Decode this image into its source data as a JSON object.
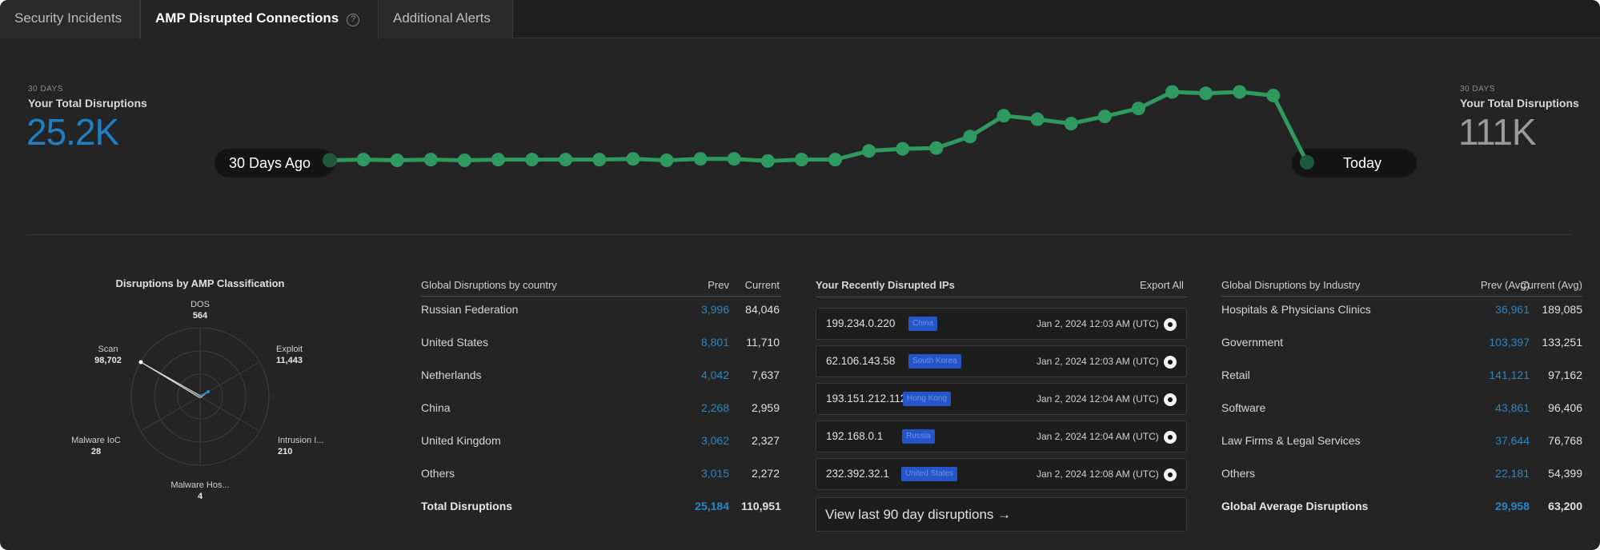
{
  "tabs": [
    {
      "label": "Security Incidents"
    },
    {
      "label": "AMP Disrupted Connections"
    },
    {
      "label": "Additional Alerts"
    }
  ],
  "colors": {
    "accent_blue": "#1f7fc4",
    "line_green": "#2e9a5f",
    "tag_blue": "#2456c9"
  },
  "summary_left": {
    "period": "30 DAYS",
    "label": "Your Total Disruptions",
    "value": "25.2K"
  },
  "summary_right": {
    "period": "30 DAYS",
    "label": "Your Total Disruptions",
    "value": "111K"
  },
  "trend": {
    "start_label": "30 Days Ago",
    "end_label": "Today",
    "values": [
      0.05,
      0.06,
      0.05,
      0.06,
      0.05,
      0.06,
      0.06,
      0.06,
      0.06,
      0.07,
      0.05,
      0.07,
      0.07,
      0.04,
      0.06,
      0.06,
      0.18,
      0.21,
      0.22,
      0.38,
      0.67,
      0.62,
      0.56,
      0.66,
      0.77,
      1.0,
      0.98,
      1.0,
      0.95,
      0.0
    ]
  },
  "classification": {
    "title": "Disruptions by AMP Classification",
    "axes": [
      {
        "name": "DOS",
        "value": "564"
      },
      {
        "name": "Exploit",
        "value": "11,443"
      },
      {
        "name": "Intrusion I...",
        "value": "210"
      },
      {
        "name": "Malware Hos...",
        "value": "4"
      },
      {
        "name": "Malware IoC",
        "value": "28"
      },
      {
        "name": "Scan",
        "value": "98,702"
      }
    ]
  },
  "by_country": {
    "title": "Global Disruptions by country",
    "col_prev": "Prev",
    "col_current": "Current",
    "rows": [
      {
        "name": "Russian Federation",
        "prev": "3,996",
        "current": "84,046"
      },
      {
        "name": "United States",
        "prev": "8,801",
        "current": "11,710"
      },
      {
        "name": "Netherlands",
        "prev": "4,042",
        "current": "7,637"
      },
      {
        "name": "China",
        "prev": "2,268",
        "current": "2,959"
      },
      {
        "name": "United Kingdom",
        "prev": "3,062",
        "current": "2,327"
      },
      {
        "name": "Others",
        "prev": "3,015",
        "current": "2,272"
      }
    ],
    "total": {
      "name": "Total Disruptions",
      "prev": "25,184",
      "current": "110,951"
    }
  },
  "recent_ips": {
    "title": "Your Recently Disrupted IPs",
    "export_label": "Export All",
    "rows": [
      {
        "ip": "199.234.0.220",
        "country": "China",
        "time": "Jan 2, 2024 12:03 AM (UTC)"
      },
      {
        "ip": "62.106.143.58",
        "country": "South Korea",
        "time": "Jan 2, 2024 12:03 AM (UTC)"
      },
      {
        "ip": "193.151.212.112",
        "country": "Hong Kong",
        "time": "Jan 2, 2024 12:04 AM (UTC)"
      },
      {
        "ip": "192.168.0.1",
        "country": "Russia",
        "time": "Jan 2, 2024 12:04 AM (UTC)"
      },
      {
        "ip": "232.392.32.1",
        "country": "United States",
        "time": "Jan 2, 2024 12:08 AM (UTC)"
      }
    ],
    "view_more": "View last 90 day disruptions →"
  },
  "by_industry": {
    "title": "Global Disruptions by Industry",
    "col_prev": "Prev (Avg)",
    "col_current": "Current (Avg)",
    "rows": [
      {
        "name": "Hospitals & Physicians Clinics",
        "prev": "36,961",
        "current": "189,085"
      },
      {
        "name": "Government",
        "prev": "103,397",
        "current": "133,251"
      },
      {
        "name": "Retail",
        "prev": "141,121",
        "current": "97,162"
      },
      {
        "name": "Software",
        "prev": "43,861",
        "current": "96,406"
      },
      {
        "name": "Law Firms & Legal Services",
        "prev": "37,644",
        "current": "76,768"
      },
      {
        "name": "Others",
        "prev": "22,181",
        "current": "54,399"
      }
    ],
    "total": {
      "name": "Global Average Disruptions",
      "prev": "29,958",
      "current": "63,200"
    }
  }
}
